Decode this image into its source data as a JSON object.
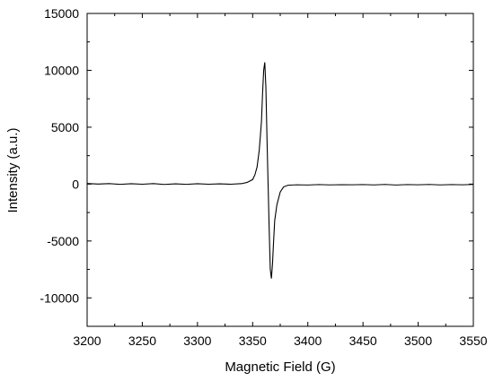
{
  "chart_data": {
    "type": "line",
    "title": "",
    "xlabel": "Magnetic Field (G)",
    "ylabel": "Intensity (a.u.)",
    "xlim": [
      3200,
      3550
    ],
    "ylim": [
      -12500,
      15000
    ],
    "x_ticks": [
      3200,
      3250,
      3300,
      3350,
      3400,
      3450,
      3500,
      3550
    ],
    "y_ticks": [
      -10000,
      -5000,
      0,
      5000,
      10000,
      15000
    ],
    "x_tick_labels": [
      "3200",
      "3250",
      "3300",
      "3350",
      "3400",
      "3450",
      "3500",
      "3550"
    ],
    "y_tick_labels": [
      "-10000",
      "-5000",
      "0",
      "5000",
      "10000",
      "15000"
    ],
    "grid": false,
    "legend": "none",
    "series": [
      {
        "color": "#000000",
        "points": [
          [
            3200,
            50
          ],
          [
            3210,
            0
          ],
          [
            3220,
            40
          ],
          [
            3230,
            -20
          ],
          [
            3240,
            30
          ],
          [
            3250,
            -10
          ],
          [
            3260,
            40
          ],
          [
            3270,
            -30
          ],
          [
            3280,
            20
          ],
          [
            3290,
            -20
          ],
          [
            3300,
            30
          ],
          [
            3310,
            -10
          ],
          [
            3320,
            20
          ],
          [
            3330,
            -10
          ],
          [
            3340,
            40
          ],
          [
            3345,
            150
          ],
          [
            3350,
            400
          ],
          [
            3352,
            800
          ],
          [
            3354,
            1500
          ],
          [
            3356,
            3000
          ],
          [
            3358,
            5500
          ],
          [
            3359,
            8000
          ],
          [
            3360,
            10000
          ],
          [
            3361,
            10700
          ],
          [
            3362,
            8500
          ],
          [
            3363,
            4000
          ],
          [
            3364,
            0
          ],
          [
            3365,
            -4000
          ],
          [
            3366,
            -7500
          ],
          [
            3367,
            -8300
          ],
          [
            3368,
            -7000
          ],
          [
            3369,
            -5000
          ],
          [
            3370,
            -3200
          ],
          [
            3372,
            -1800
          ],
          [
            3375,
            -700
          ],
          [
            3378,
            -250
          ],
          [
            3382,
            -100
          ],
          [
            3390,
            -60
          ],
          [
            3400,
            -80
          ],
          [
            3410,
            -40
          ],
          [
            3420,
            -70
          ],
          [
            3430,
            -50
          ],
          [
            3440,
            -60
          ],
          [
            3450,
            -40
          ],
          [
            3460,
            -70
          ],
          [
            3470,
            -30
          ],
          [
            3480,
            -80
          ],
          [
            3490,
            -40
          ],
          [
            3500,
            -60
          ],
          [
            3510,
            -30
          ],
          [
            3520,
            -70
          ],
          [
            3530,
            -40
          ],
          [
            3540,
            -60
          ],
          [
            3550,
            -30
          ]
        ]
      }
    ]
  }
}
